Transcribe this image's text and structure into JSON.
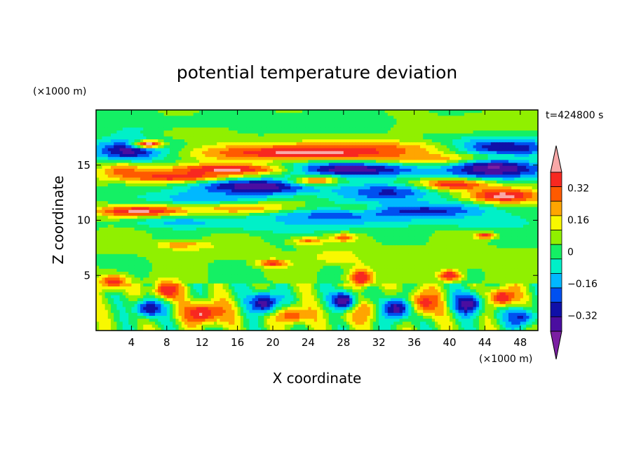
{
  "chart_data": {
    "type": "heatmap",
    "title": "potential temperature deviation",
    "xlabel": "X coordinate",
    "ylabel": "Z coordinate",
    "x_unit": "(×1000 m)",
    "y_unit": "(×1000 m)",
    "time_label": "t=424800 s",
    "xlim": [
      0,
      50
    ],
    "ylim": [
      0,
      20
    ],
    "x_ticks": [
      4,
      8,
      12,
      16,
      20,
      24,
      28,
      32,
      36,
      40,
      44,
      48
    ],
    "y_ticks": [
      5,
      10,
      15
    ],
    "grid": false,
    "colorbar": {
      "placement": "right",
      "levels": [
        -0.48,
        -0.4,
        -0.32,
        -0.24,
        -0.16,
        -0.08,
        0,
        0.08,
        0.16,
        0.24,
        0.32,
        0.4,
        0.48
      ],
      "colors": [
        "#7b1fa2",
        "#4b0ea0",
        "#1010a8",
        "#0050f0",
        "#00b8ff",
        "#00f0c8",
        "#14f064",
        "#90f000",
        "#f8f800",
        "#ffa500",
        "#ff5a00",
        "#f82820",
        "#f8a8a8"
      ],
      "labels": [
        {
          "value": 0.32,
          "text": "0.32"
        },
        {
          "value": 0.16,
          "text": "0.16"
        },
        {
          "value": 0,
          "text": "0"
        },
        {
          "value": -0.16,
          "text": "−0.16"
        },
        {
          "value": -0.32,
          "text": "−0.32"
        }
      ]
    },
    "features": [
      {
        "x": 25,
        "z": 18.8,
        "a": 30,
        "b": 1.6,
        "v": 0.02
      },
      {
        "x": 42,
        "z": 18.6,
        "a": 8,
        "b": 1.2,
        "v": 0.08
      },
      {
        "x": 6,
        "z": 18.0,
        "a": 5,
        "b": 1.0,
        "v": -0.1
      },
      {
        "x": 10,
        "z": 17.8,
        "a": 6,
        "b": 0.8,
        "v": 0.1
      },
      {
        "x": 4,
        "z": 16.3,
        "a": 5,
        "b": 1.1,
        "v": -0.45
      },
      {
        "x": 45,
        "z": 16.5,
        "a": 8,
        "b": 1.0,
        "v": -0.45
      },
      {
        "x": 32,
        "z": 16.6,
        "a": 10,
        "b": 0.8,
        "v": 0.2
      },
      {
        "x": 24,
        "z": 16.1,
        "a": 14,
        "b": 0.9,
        "v": 0.48
      },
      {
        "x": 6,
        "z": 16.9,
        "a": 2,
        "b": 0.4,
        "v": 0.48
      },
      {
        "x": 41,
        "z": 15.4,
        "a": 9,
        "b": 0.7,
        "v": 0.48
      },
      {
        "x": 28,
        "z": 14.6,
        "a": 10,
        "b": 0.8,
        "v": -0.45
      },
      {
        "x": 45,
        "z": 14.7,
        "a": 7,
        "b": 1.2,
        "v": -0.45
      },
      {
        "x": 15,
        "z": 14.6,
        "a": 8,
        "b": 0.6,
        "v": 0.48
      },
      {
        "x": 3,
        "z": 14.5,
        "a": 3,
        "b": 0.7,
        "v": 0.3
      },
      {
        "x": 10,
        "z": 13.9,
        "a": 8,
        "b": 0.6,
        "v": 0.48
      },
      {
        "x": 18,
        "z": 13.0,
        "a": 8,
        "b": 0.9,
        "v": -0.45
      },
      {
        "x": 25,
        "z": 13.6,
        "a": 3,
        "b": 0.5,
        "v": 0.3
      },
      {
        "x": 40,
        "z": 13.2,
        "a": 5,
        "b": 0.6,
        "v": 0.48
      },
      {
        "x": 46,
        "z": 12.2,
        "a": 5,
        "b": 0.8,
        "v": 0.48
      },
      {
        "x": 33,
        "z": 12.5,
        "a": 6,
        "b": 1.0,
        "v": -0.3
      },
      {
        "x": 12,
        "z": 12.0,
        "a": 7,
        "b": 0.9,
        "v": -0.2
      },
      {
        "x": 5,
        "z": 10.8,
        "a": 6,
        "b": 0.6,
        "v": 0.48
      },
      {
        "x": 17,
        "z": 11.0,
        "a": 7,
        "b": 0.6,
        "v": 0.3
      },
      {
        "x": 30,
        "z": 11.0,
        "a": 3,
        "b": 0.4,
        "v": 0.35
      },
      {
        "x": 37,
        "z": 10.8,
        "a": 9,
        "b": 0.9,
        "v": -0.32
      },
      {
        "x": 26,
        "z": 10.2,
        "a": 8,
        "b": 0.9,
        "v": -0.28
      },
      {
        "x": 10,
        "z": 9.8,
        "a": 7,
        "b": 0.6,
        "v": -0.15
      },
      {
        "x": 22,
        "z": 9.6,
        "a": 10,
        "b": 0.8,
        "v": -0.12
      },
      {
        "x": 44,
        "z": 9.8,
        "a": 6,
        "b": 0.7,
        "v": -0.12
      },
      {
        "x": 10,
        "z": 7.7,
        "a": 3,
        "b": 0.4,
        "v": 0.4
      },
      {
        "x": 24,
        "z": 8.1,
        "a": 2,
        "b": 0.4,
        "v": 0.3
      },
      {
        "x": 28,
        "z": 8.4,
        "a": 1.5,
        "b": 0.4,
        "v": 0.35
      },
      {
        "x": 44,
        "z": 8.6,
        "a": 1.2,
        "b": 0.3,
        "v": 0.45
      },
      {
        "x": 28,
        "z": 6.7,
        "a": 3,
        "b": 0.6,
        "v": 0.42
      },
      {
        "x": 20,
        "z": 6.1,
        "a": 2,
        "b": 0.4,
        "v": 0.4
      },
      {
        "x": 13,
        "z": 7.3,
        "a": 6,
        "b": 0.8,
        "v": 0.12
      },
      {
        "x": 32,
        "z": 6.8,
        "a": 8,
        "b": 1.0,
        "v": 0.08
      },
      {
        "x": 44,
        "z": 6.6,
        "a": 6,
        "b": 0.9,
        "v": 0.1
      },
      {
        "x": 30,
        "z": 4.8,
        "a": 1.6,
        "b": 1.0,
        "v": 0.45
      },
      {
        "x": 40,
        "z": 5.0,
        "a": 1.5,
        "b": 0.6,
        "v": 0.45
      },
      {
        "x": 2,
        "z": 4.4,
        "a": 2,
        "b": 0.8,
        "v": 0.4
      },
      {
        "x": 8,
        "z": 3.6,
        "a": 1.8,
        "b": 1.0,
        "v": 0.45
      },
      {
        "x": 46,
        "z": 3.0,
        "a": 2,
        "b": 1.0,
        "v": 0.45
      },
      {
        "x": 37,
        "z": 2.5,
        "a": 2.5,
        "b": 1.3,
        "v": 0.42
      },
      {
        "x": 12,
        "z": 1.6,
        "a": 3,
        "b": 1.2,
        "v": 0.45
      },
      {
        "x": 22,
        "z": 1.4,
        "a": 3,
        "b": 1.0,
        "v": 0.35
      },
      {
        "x": 30,
        "z": 1.8,
        "a": 2.5,
        "b": 1.2,
        "v": 0.3
      },
      {
        "x": 19,
        "z": 2.5,
        "a": 2,
        "b": 1.2,
        "v": -0.4
      },
      {
        "x": 28,
        "z": 2.7,
        "a": 1.6,
        "b": 1.0,
        "v": -0.45
      },
      {
        "x": 34,
        "z": 2.0,
        "a": 2,
        "b": 1.2,
        "v": -0.4
      },
      {
        "x": 42,
        "z": 2.4,
        "a": 2,
        "b": 1.2,
        "v": -0.42
      },
      {
        "x": 6,
        "z": 2.0,
        "a": 2,
        "b": 1.0,
        "v": -0.35
      },
      {
        "x": 48,
        "z": 1.2,
        "a": 2,
        "b": 1.0,
        "v": -0.3
      }
    ]
  }
}
